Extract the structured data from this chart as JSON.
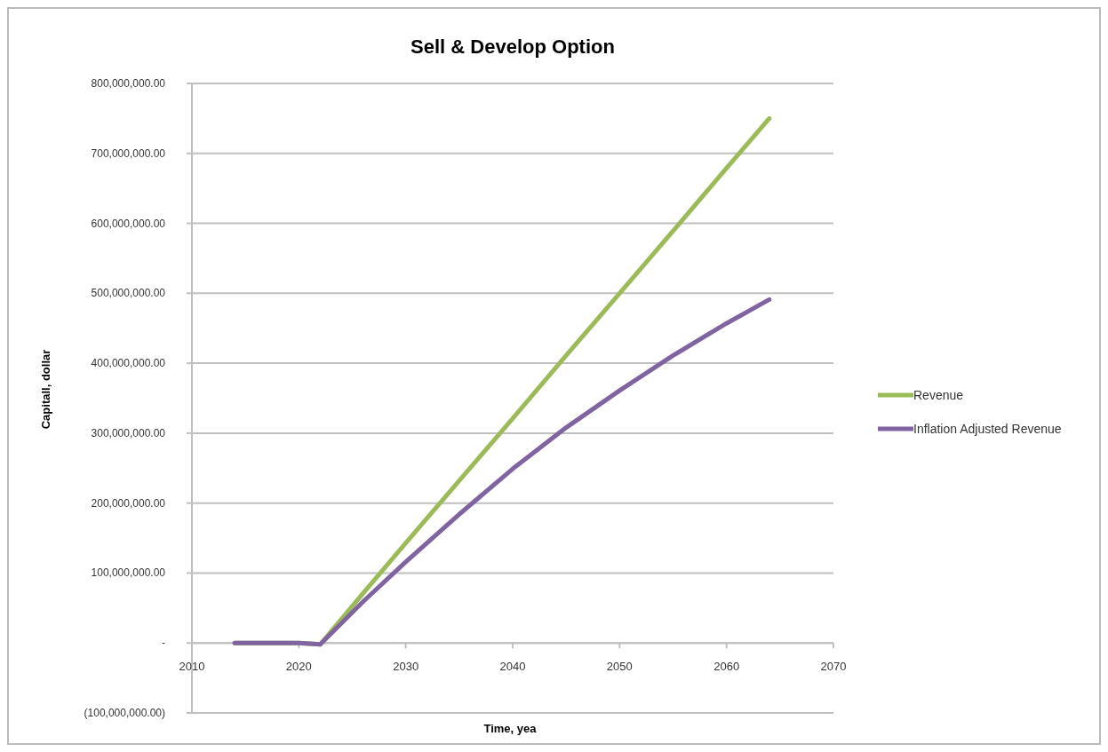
{
  "chart_data": {
    "type": "line",
    "title": "Sell & Develop Option",
    "xlabel": "Time, yea",
    "ylabel": "Capitall, dollar",
    "x": [
      2014,
      2016,
      2018,
      2020,
      2022,
      2026,
      2030,
      2035,
      2040,
      2045,
      2050,
      2055,
      2060,
      2064
    ],
    "series": [
      {
        "name": "Revenue",
        "color": "#9bbb59",
        "values": [
          0,
          0,
          0,
          0,
          -2000000,
          71000000,
          143000000,
          232000000,
          321000000,
          411000000,
          500000000,
          589000000,
          679000000,
          750000000
        ]
      },
      {
        "name": "Inflation Adjusted Revenue",
        "color": "#8064a2",
        "values": [
          0,
          0,
          0,
          0,
          -2000000,
          59000000,
          116000000,
          184000000,
          249000000,
          308000000,
          361000000,
          411000000,
          457000000,
          491000000
        ]
      }
    ],
    "xlim": [
      2010,
      2070
    ],
    "xticks": [
      2010,
      2020,
      2030,
      2040,
      2050,
      2060,
      2070
    ],
    "ylim": [
      -100000000,
      800000000
    ],
    "yticks": [
      {
        "value": -100000000,
        "label": "(100,000,000.00)"
      },
      {
        "value": 0,
        "label": "-"
      },
      {
        "value": 100000000,
        "label": "100,000,000.00"
      },
      {
        "value": 200000000,
        "label": "200,000,000.00"
      },
      {
        "value": 300000000,
        "label": "300,000,000.00"
      },
      {
        "value": 400000000,
        "label": "400,000,000.00"
      },
      {
        "value": 500000000,
        "label": "500,000,000.00"
      },
      {
        "value": 600000000,
        "label": "600,000,000.00"
      },
      {
        "value": 700000000,
        "label": "700,000,000.00"
      },
      {
        "value": 800000000,
        "label": "800,000,000.00"
      }
    ],
    "grid": "y",
    "legend": "right",
    "marker": "none",
    "line_style": "solid"
  }
}
